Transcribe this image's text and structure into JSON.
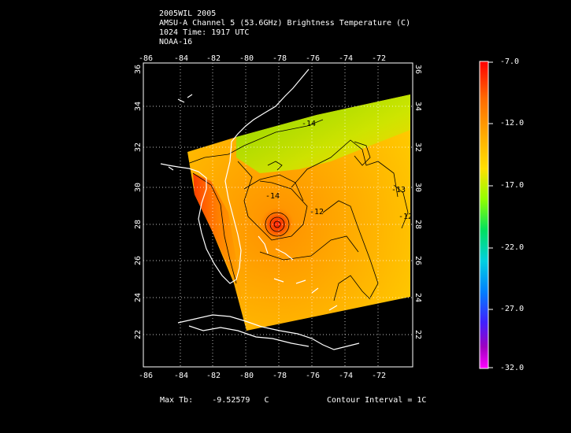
{
  "title": {
    "line1": "2005WIL 2005",
    "line2": "AMSU-A Channel 5 (53.6GHz) Brightness Temperature (C)",
    "line3": "1024 Time: 1917 UTC",
    "line4": "NOAA-16"
  },
  "axes": {
    "lon_ticks": [
      "-86",
      "-84",
      "-82",
      "-80",
      "-78",
      "-76",
      "-74",
      "-72"
    ],
    "lat_ticks": [
      "22",
      "24",
      "26",
      "28",
      "30",
      "32",
      "34",
      "36"
    ]
  },
  "contour_labels": [
    "-14",
    "-14",
    "-13",
    "-12",
    "-12"
  ],
  "colorbar": {
    "labels": [
      "-7.0",
      "-12.0",
      "-17.0",
      "-22.0",
      "-27.0",
      "-32.0"
    ],
    "colors": [
      "#ff0000",
      "#ff8c00",
      "#ffd700",
      "#7fff00",
      "#00e000",
      "#00e0c0",
      "#0090ff",
      "#3030ff",
      "#8000c0",
      "#ff00ff"
    ]
  },
  "footer": {
    "max_tb_label": "Max Tb:",
    "max_tb_value": "-9.52579",
    "max_tb_unit": "C",
    "contour_interval": "Contour Interval = 1C"
  }
}
